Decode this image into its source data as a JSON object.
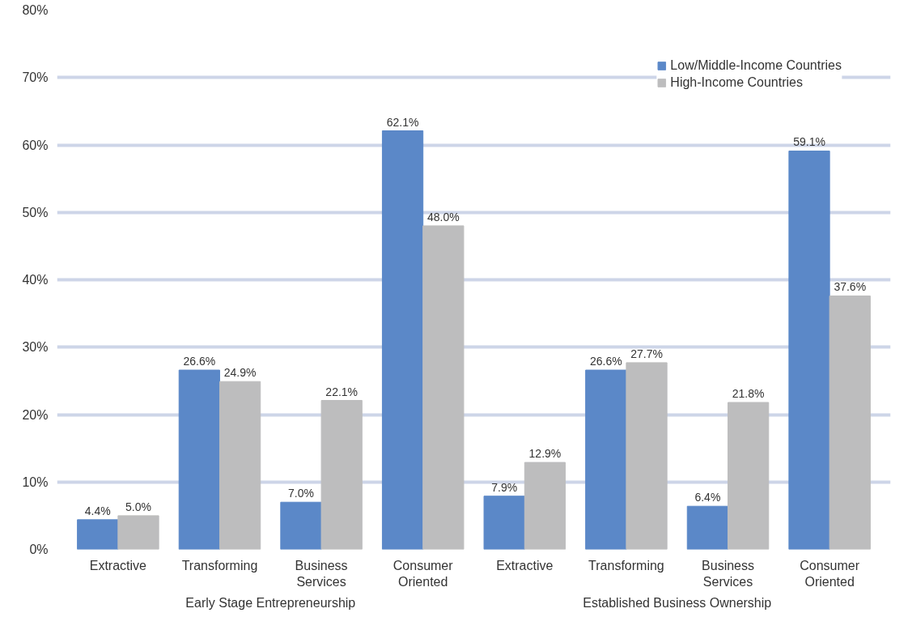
{
  "chart_data": {
    "type": "bar",
    "categories": [
      "Extractive",
      "Transforming",
      "Business\nServices",
      "Consumer\nOriented",
      "Extractive",
      "Transforming",
      "Business\nServices",
      "Consumer\nOriented"
    ],
    "series": [
      {
        "name": "Low/Middle-Income Countries",
        "color": "#5b88c8",
        "values": [
          4.4,
          26.6,
          7.0,
          62.1,
          7.9,
          26.6,
          6.4,
          59.1
        ],
        "value_labels": [
          "4.4%",
          "26.6%",
          "7.0%",
          "62.1%",
          "7.9%",
          "26.6%",
          "6.4%",
          "59.1%"
        ]
      },
      {
        "name": "High-Income Countries",
        "color": "#bdbdbe",
        "values": [
          5.0,
          24.9,
          22.1,
          48.0,
          12.9,
          27.7,
          21.8,
          37.6
        ],
        "value_labels": [
          "5.0%",
          "24.9%",
          "22.1%",
          "48.0%",
          "12.9%",
          "27.7%",
          "21.8%",
          "37.6%"
        ]
      }
    ],
    "ylim": [
      0,
      80
    ],
    "yticks": [
      {
        "value": 0,
        "label": "0%"
      },
      {
        "value": 10,
        "label": "10%"
      },
      {
        "value": 20,
        "label": "20%"
      },
      {
        "value": 30,
        "label": "30%"
      },
      {
        "value": 40,
        "label": "40%"
      },
      {
        "value": 50,
        "label": "50%"
      },
      {
        "value": 60,
        "label": "60%"
      },
      {
        "value": 70,
        "label": "70%"
      },
      {
        "value": 80,
        "label": "80%"
      }
    ],
    "grid": "y",
    "legend": "top right",
    "annotations": [
      "Early Stage Entrepreneurship",
      "Established Business Ownership"
    ]
  }
}
